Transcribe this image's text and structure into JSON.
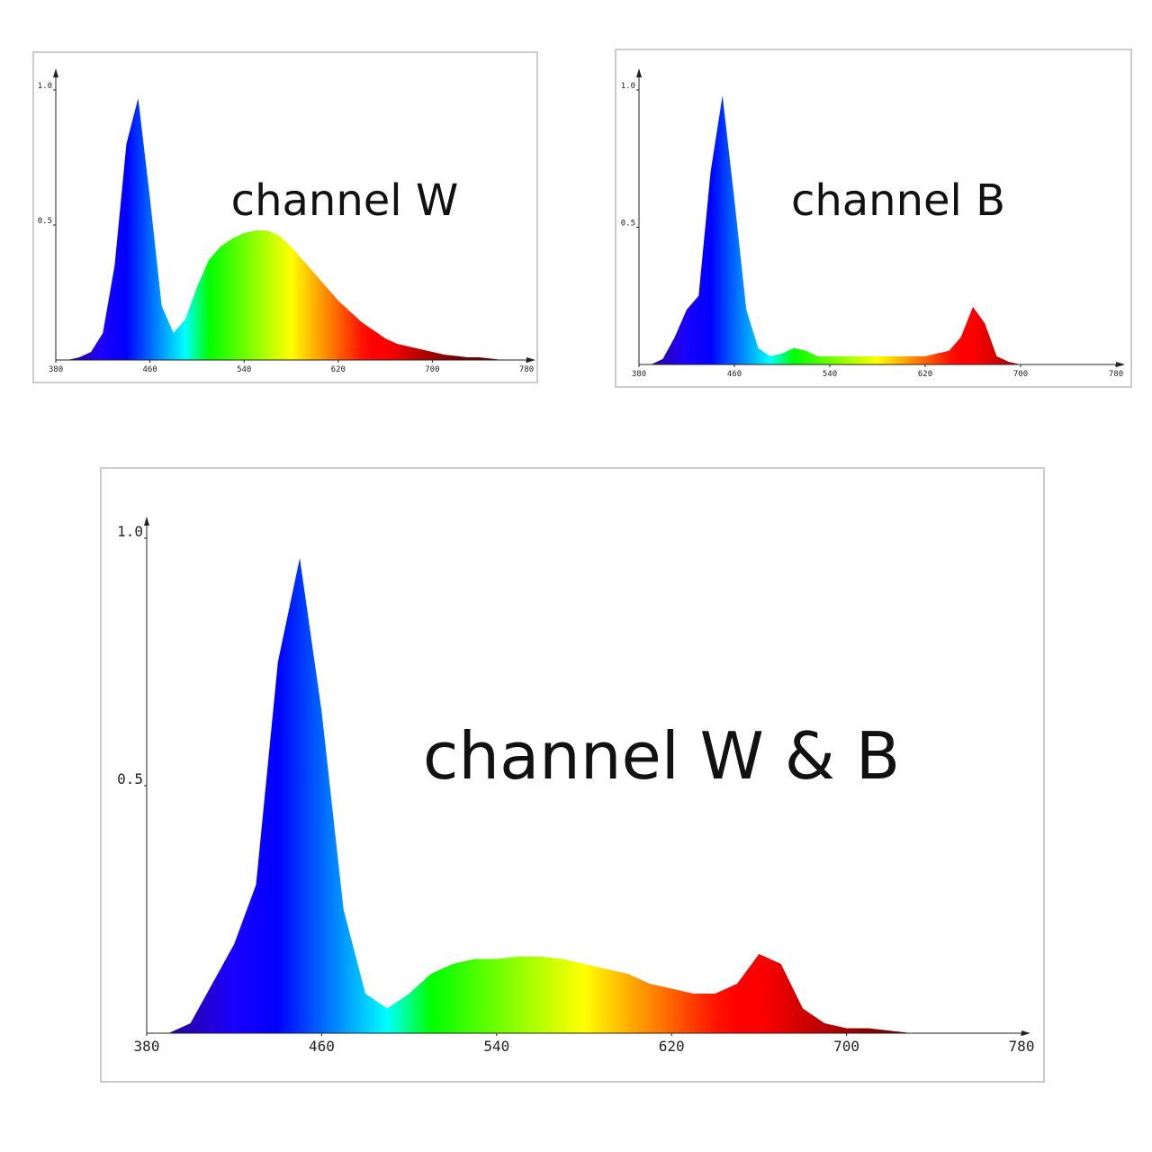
{
  "chart_data": [
    {
      "type": "area",
      "title": "channel W",
      "x": [
        380,
        390,
        400,
        410,
        420,
        430,
        440,
        450,
        460,
        470,
        480,
        490,
        500,
        510,
        520,
        530,
        540,
        550,
        560,
        570,
        580,
        590,
        600,
        610,
        620,
        630,
        640,
        650,
        660,
        670,
        680,
        690,
        700,
        710,
        720,
        730,
        740,
        750,
        760,
        770,
        780
      ],
      "values": [
        0,
        0,
        0.01,
        0.03,
        0.1,
        0.35,
        0.8,
        0.97,
        0.6,
        0.2,
        0.1,
        0.15,
        0.27,
        0.37,
        0.42,
        0.45,
        0.47,
        0.48,
        0.48,
        0.46,
        0.42,
        0.37,
        0.32,
        0.27,
        0.22,
        0.18,
        0.14,
        0.11,
        0.08,
        0.06,
        0.05,
        0.04,
        0.03,
        0.02,
        0.015,
        0.01,
        0.01,
        0.005,
        0,
        0,
        0
      ],
      "xlim": [
        380,
        780
      ],
      "ylim": [
        0,
        1
      ],
      "xticks": [
        380,
        460,
        540,
        620,
        700,
        780
      ],
      "yticks": [
        0.5,
        {
          "value": 1,
          "label": "1.0"
        }
      ]
    },
    {
      "type": "area",
      "title": "channel B",
      "x": [
        380,
        390,
        400,
        410,
        420,
        430,
        440,
        450,
        460,
        470,
        480,
        490,
        500,
        510,
        520,
        530,
        540,
        550,
        560,
        570,
        580,
        590,
        600,
        610,
        620,
        630,
        640,
        650,
        660,
        670,
        680,
        690,
        700,
        710,
        720,
        730,
        740,
        750,
        760,
        770,
        780
      ],
      "values": [
        0,
        0,
        0.02,
        0.1,
        0.2,
        0.25,
        0.7,
        0.98,
        0.6,
        0.2,
        0.06,
        0.03,
        0.04,
        0.06,
        0.05,
        0.03,
        0.03,
        0.03,
        0.03,
        0.03,
        0.03,
        0.03,
        0.03,
        0.03,
        0.03,
        0.04,
        0.05,
        0.1,
        0.21,
        0.15,
        0.03,
        0.01,
        0,
        0,
        0,
        0,
        0,
        0,
        0,
        0,
        0
      ],
      "xlim": [
        380,
        780
      ],
      "ylim": [
        0,
        1
      ],
      "xticks": [
        380,
        460,
        540,
        620,
        700,
        780
      ],
      "yticks": [
        0.5,
        {
          "value": 1,
          "label": "1.0"
        }
      ]
    },
    {
      "type": "area",
      "title": "channel W & B",
      "x": [
        380,
        390,
        400,
        410,
        420,
        430,
        440,
        450,
        460,
        470,
        480,
        490,
        500,
        510,
        520,
        530,
        540,
        550,
        560,
        570,
        580,
        590,
        600,
        610,
        620,
        630,
        640,
        650,
        660,
        670,
        680,
        690,
        700,
        710,
        720,
        730,
        740,
        750,
        760,
        770,
        780
      ],
      "values": [
        0,
        0,
        0.02,
        0.1,
        0.18,
        0.3,
        0.75,
        0.96,
        0.65,
        0.25,
        0.08,
        0.05,
        0.08,
        0.12,
        0.14,
        0.15,
        0.15,
        0.155,
        0.155,
        0.15,
        0.14,
        0.13,
        0.12,
        0.1,
        0.09,
        0.08,
        0.08,
        0.1,
        0.16,
        0.14,
        0.05,
        0.02,
        0.01,
        0.01,
        0.005,
        0,
        0,
        0,
        0,
        0,
        0
      ],
      "xlim": [
        380,
        780
      ],
      "ylim": [
        0,
        1
      ],
      "xticks": [
        380,
        460,
        540,
        620,
        700,
        780
      ],
      "yticks": [
        0.5,
        {
          "value": 1,
          "label": "1.0"
        }
      ]
    }
  ]
}
